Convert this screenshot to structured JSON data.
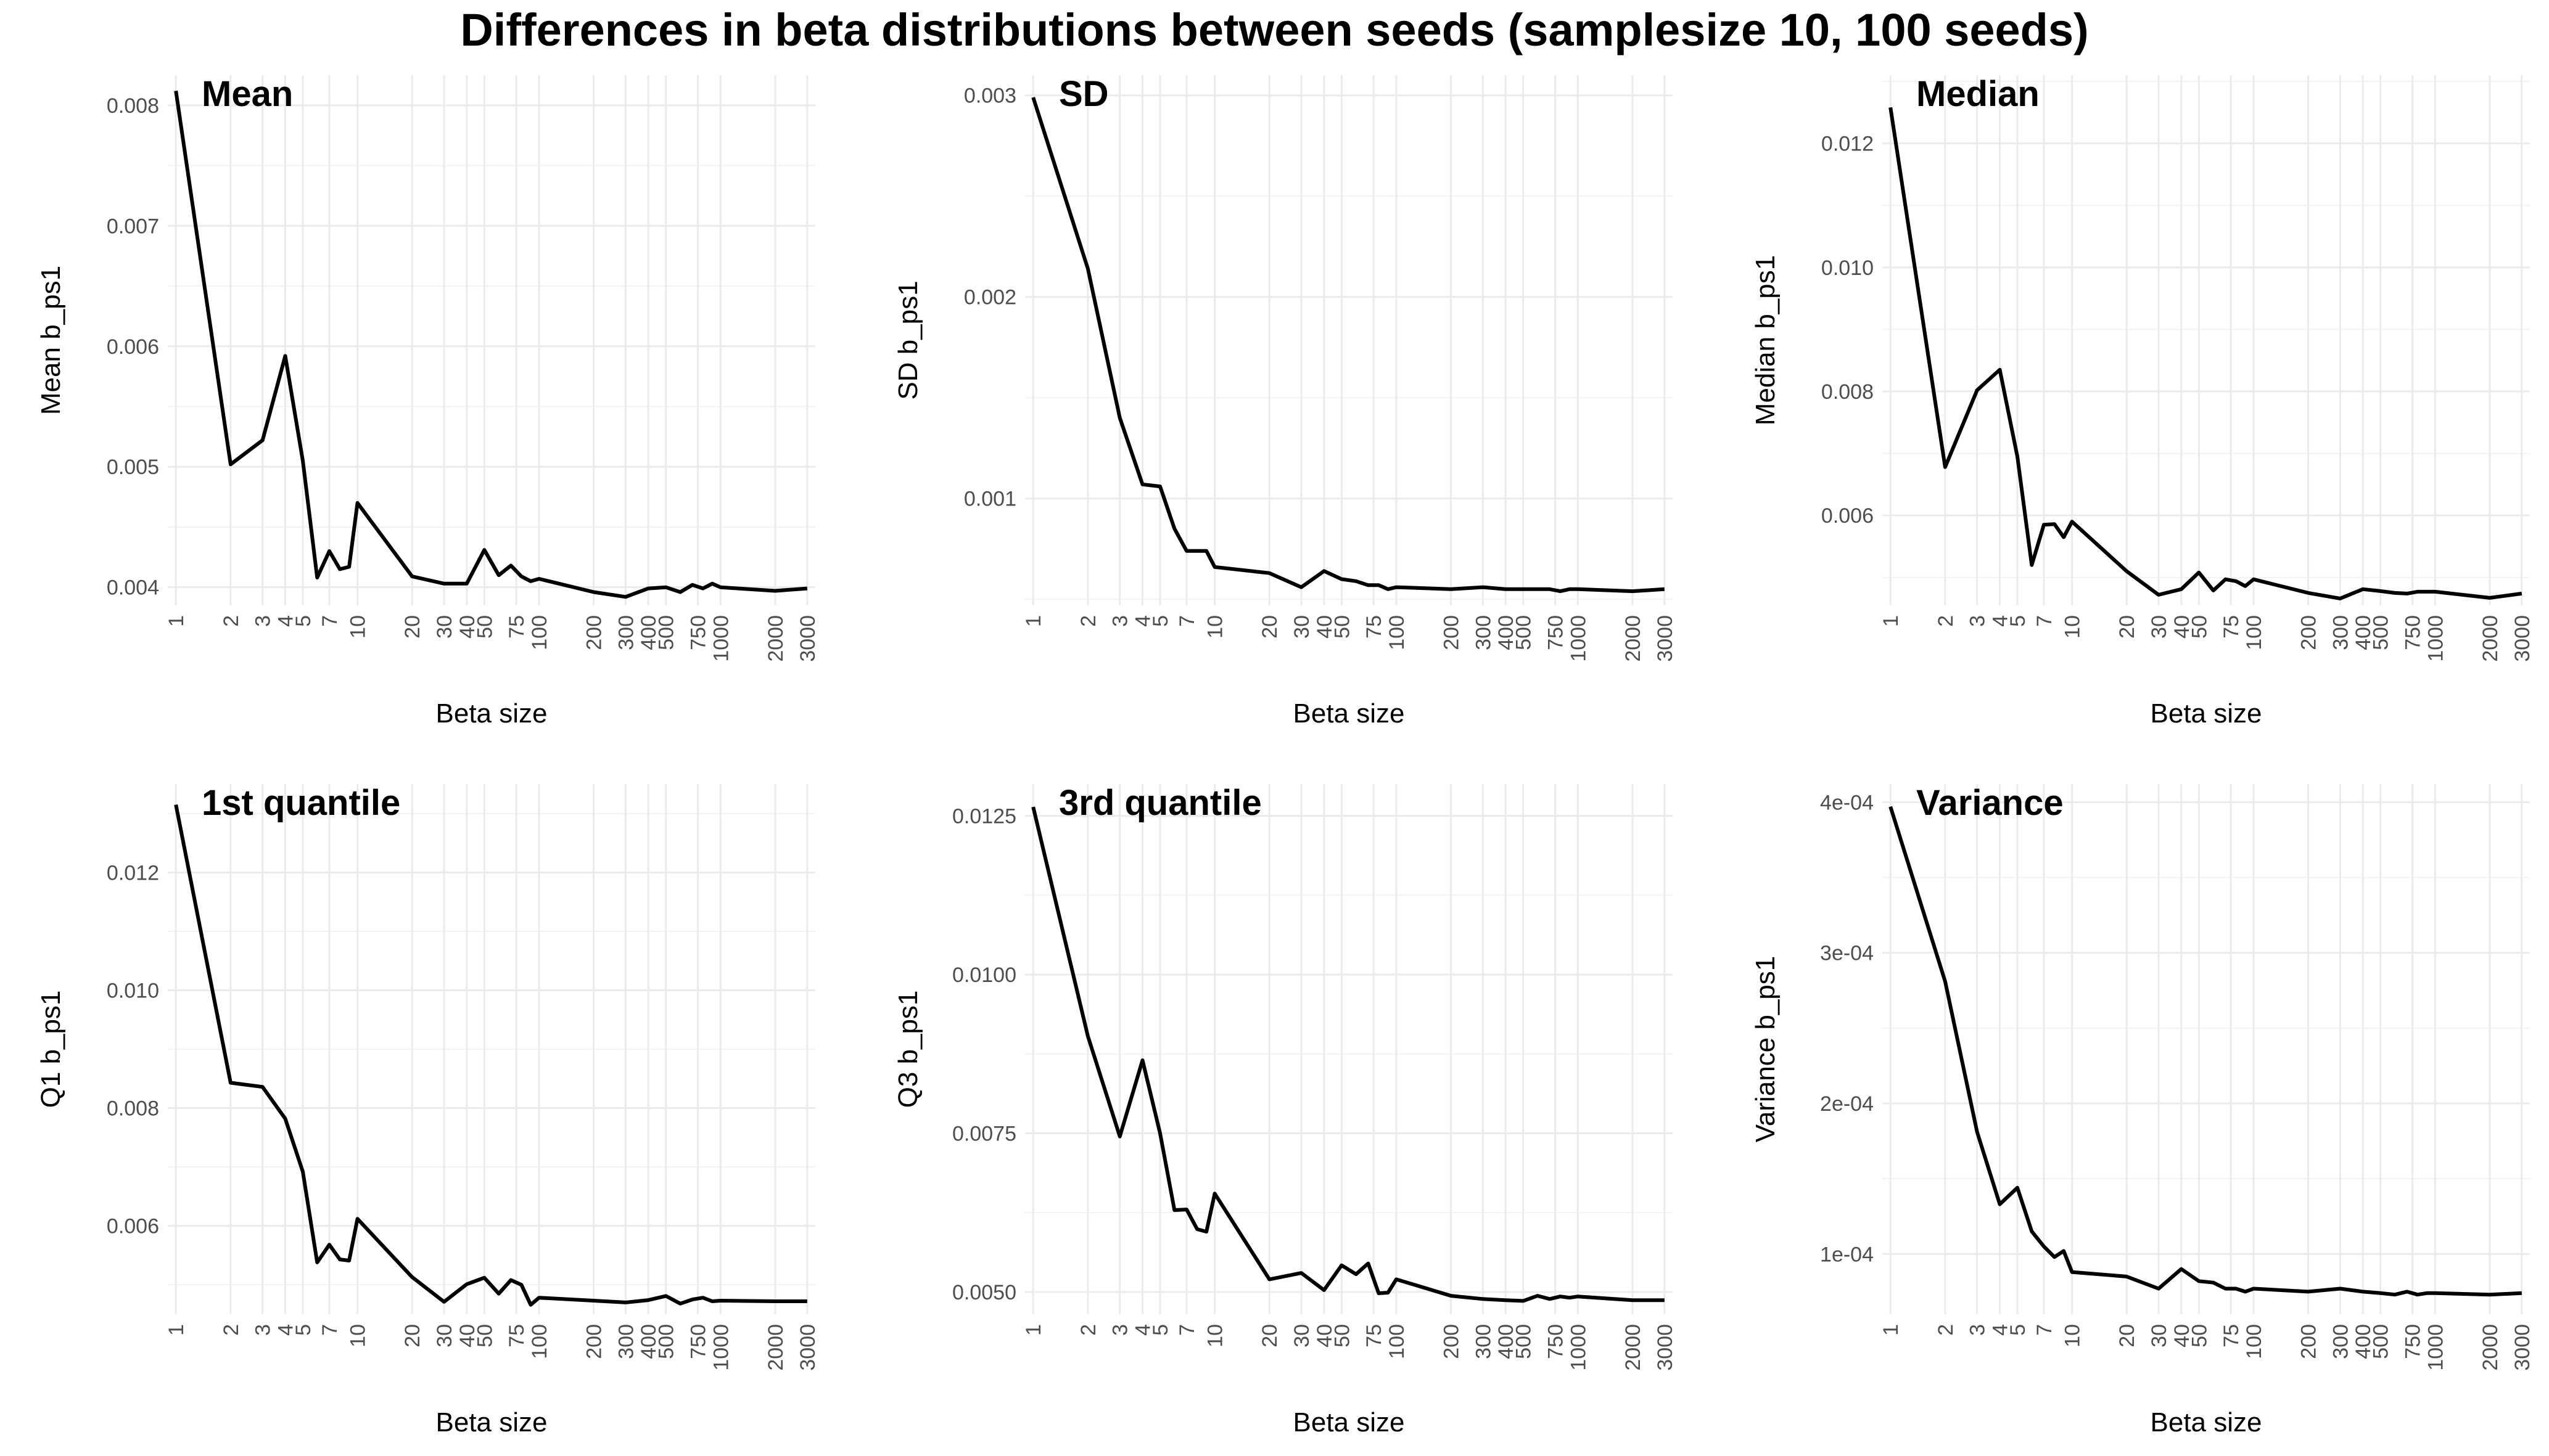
{
  "title": "Differences in beta distributions between seeds (samplesize 10, 100 seeds)",
  "chart_data": [
    {
      "type": "line",
      "title": "Mean",
      "xlabel": "Beta size",
      "ylabel": "Mean b_ps1",
      "x_scale": "log",
      "xticks": [
        1,
        2,
        3,
        4,
        5,
        7,
        10,
        20,
        30,
        40,
        50,
        75,
        100,
        200,
        300,
        400,
        500,
        750,
        1000,
        2000,
        3000
      ],
      "xlim": [
        1,
        3000
      ],
      "yticks": [
        "0.004",
        "0.005",
        "0.006",
        "0.007",
        "0.008"
      ],
      "ylim": [
        0.00385,
        0.00825
      ],
      "grid": true,
      "x": [
        1,
        2,
        3,
        4,
        5,
        6,
        7,
        8,
        9,
        10,
        20,
        30,
        40,
        50,
        60,
        70,
        80,
        90,
        100,
        200,
        300,
        400,
        500,
        600,
        700,
        800,
        900,
        1000,
        2000,
        3000
      ],
      "y": [
        0.00812,
        0.00502,
        0.00522,
        0.00592,
        0.00505,
        0.00408,
        0.0043,
        0.00415,
        0.00417,
        0.0047,
        0.00409,
        0.00403,
        0.00403,
        0.00431,
        0.0041,
        0.00418,
        0.00409,
        0.00405,
        0.00407,
        0.00396,
        0.00392,
        0.00399,
        0.004,
        0.00396,
        0.00402,
        0.00399,
        0.00403,
        0.004,
        0.00397,
        0.00399
      ]
    },
    {
      "type": "line",
      "title": "SD",
      "xlabel": "Beta size",
      "ylabel": "SD b_ps1",
      "x_scale": "log",
      "xticks": [
        1,
        2,
        3,
        4,
        5,
        7,
        10,
        20,
        30,
        40,
        50,
        75,
        100,
        200,
        300,
        400,
        500,
        750,
        1000,
        2000,
        3000
      ],
      "xlim": [
        1,
        3000
      ],
      "yticks": [
        "0.001",
        "0.002",
        "0.003"
      ],
      "ylim": [
        0.00047,
        0.0031
      ],
      "grid": true,
      "x": [
        1,
        2,
        3,
        4,
        5,
        6,
        7,
        8,
        9,
        10,
        20,
        30,
        40,
        50,
        60,
        70,
        80,
        90,
        100,
        200,
        300,
        400,
        500,
        600,
        700,
        800,
        900,
        1000,
        2000,
        3000
      ],
      "y": [
        0.00299,
        0.00214,
        0.0014,
        0.00107,
        0.00106,
        0.00085,
        0.00074,
        0.00074,
        0.00074,
        0.00066,
        0.00063,
        0.00056,
        0.00064,
        0.0006,
        0.00059,
        0.00057,
        0.00057,
        0.00055,
        0.00056,
        0.00055,
        0.00056,
        0.00055,
        0.00055,
        0.00055,
        0.00055,
        0.00054,
        0.00055,
        0.00055,
        0.00054,
        0.00055
      ]
    },
    {
      "type": "line",
      "title": "Median",
      "xlabel": "Beta size",
      "ylabel": "Median b_ps1",
      "x_scale": "log",
      "xticks": [
        1,
        2,
        3,
        4,
        5,
        7,
        10,
        20,
        30,
        40,
        50,
        75,
        100,
        200,
        300,
        400,
        500,
        750,
        1000,
        2000,
        3000
      ],
      "xlim": [
        1,
        3000
      ],
      "yticks": [
        "0.006",
        "0.008",
        "0.010",
        "0.012"
      ],
      "ylim": [
        0.00455,
        0.0131
      ],
      "grid": true,
      "x": [
        1,
        2,
        3,
        4,
        5,
        6,
        7,
        8,
        9,
        10,
        20,
        30,
        40,
        50,
        60,
        70,
        80,
        90,
        100,
        200,
        300,
        400,
        500,
        600,
        700,
        800,
        900,
        1000,
        2000,
        3000
      ],
      "y": [
        0.01258,
        0.00678,
        0.00802,
        0.00835,
        0.00695,
        0.0052,
        0.00585,
        0.00586,
        0.00565,
        0.0059,
        0.0051,
        0.00472,
        0.00481,
        0.00508,
        0.00479,
        0.00497,
        0.00494,
        0.00486,
        0.00497,
        0.00475,
        0.00466,
        0.00481,
        0.00478,
        0.00475,
        0.00474,
        0.00477,
        0.00477,
        0.00477,
        0.00467,
        0.00474
      ]
    },
    {
      "type": "line",
      "title": "1st quantile",
      "xlabel": "Beta size",
      "ylabel": "Q1 b_ps1",
      "x_scale": "log",
      "xticks": [
        1,
        2,
        3,
        4,
        5,
        7,
        10,
        20,
        30,
        40,
        50,
        75,
        100,
        200,
        300,
        400,
        500,
        750,
        1000,
        2000,
        3000
      ],
      "xlim": [
        1,
        3000
      ],
      "yticks": [
        "0.006",
        "0.008",
        "0.010",
        "0.012"
      ],
      "ylim": [
        0.0045,
        0.0135
      ],
      "grid": true,
      "x": [
        1,
        2,
        3,
        4,
        5,
        6,
        7,
        8,
        9,
        10,
        20,
        30,
        40,
        50,
        60,
        70,
        80,
        90,
        100,
        200,
        300,
        400,
        500,
        600,
        700,
        800,
        900,
        1000,
        2000,
        3000
      ],
      "y": [
        0.01315,
        0.00843,
        0.00836,
        0.00782,
        0.00692,
        0.00538,
        0.00568,
        0.00543,
        0.00541,
        0.00612,
        0.00513,
        0.00471,
        0.00501,
        0.00512,
        0.00485,
        0.00508,
        0.005,
        0.00466,
        0.00478,
        0.00473,
        0.0047,
        0.00474,
        0.00481,
        0.00468,
        0.00475,
        0.00478,
        0.00472,
        0.00473,
        0.00472,
        0.00472
      ]
    },
    {
      "type": "line",
      "title": "3rd quantile",
      "xlabel": "Beta size",
      "ylabel": "Q3 b_ps1",
      "x_scale": "log",
      "xticks": [
        1,
        2,
        3,
        4,
        5,
        7,
        10,
        20,
        30,
        40,
        50,
        75,
        100,
        200,
        300,
        400,
        500,
        750,
        1000,
        2000,
        3000
      ],
      "xlim": [
        1,
        3000
      ],
      "yticks": [
        "0.0050",
        "0.0075",
        "0.0100",
        "0.0125"
      ],
      "ylim": [
        0.00465,
        0.013
      ],
      "grid": true,
      "x": [
        1,
        2,
        3,
        4,
        5,
        6,
        7,
        8,
        9,
        10,
        20,
        30,
        40,
        50,
        60,
        70,
        80,
        90,
        100,
        200,
        300,
        400,
        500,
        600,
        700,
        800,
        900,
        1000,
        2000,
        3000
      ],
      "y": [
        0.01264,
        0.00903,
        0.00745,
        0.00865,
        0.0075,
        0.00629,
        0.0063,
        0.00599,
        0.00595,
        0.00655,
        0.0052,
        0.0053,
        0.00503,
        0.00542,
        0.00528,
        0.00545,
        0.00498,
        0.00499,
        0.0052,
        0.00494,
        0.00489,
        0.00487,
        0.00486,
        0.00494,
        0.00489,
        0.00493,
        0.00491,
        0.00493,
        0.00487,
        0.00487
      ]
    },
    {
      "type": "line",
      "title": "Variance",
      "xlabel": "Beta size",
      "ylabel": "Variance b_ps1",
      "x_scale": "log",
      "xticks": [
        1,
        2,
        3,
        4,
        5,
        7,
        10,
        20,
        30,
        40,
        50,
        75,
        100,
        200,
        300,
        400,
        500,
        750,
        1000,
        2000,
        3000
      ],
      "xlim": [
        1,
        3000
      ],
      "yticks": [
        "1e-04",
        "2e-04",
        "3e-04",
        "4e-04"
      ],
      "ylim": [
        6e-05,
        0.000412
      ],
      "grid": true,
      "x": [
        1,
        2,
        3,
        4,
        5,
        6,
        7,
        8,
        9,
        10,
        20,
        30,
        40,
        50,
        60,
        70,
        80,
        90,
        100,
        200,
        300,
        400,
        500,
        600,
        700,
        800,
        900,
        1000,
        2000,
        3000
      ],
      "y": [
        0.000397,
        0.000281,
        0.000181,
        0.000133,
        0.000144,
        0.000115,
        0.000105,
        9.8e-05,
        0.000102,
        8.8e-05,
        8.5e-05,
        7.7e-05,
        9e-05,
        8.2e-05,
        8.1e-05,
        7.7e-05,
        7.7e-05,
        7.5e-05,
        7.7e-05,
        7.5e-05,
        7.7e-05,
        7.5e-05,
        7.4e-05,
        7.3e-05,
        7.5e-05,
        7.3e-05,
        7.4e-05,
        7.4e-05,
        7.3e-05,
        7.4e-05
      ]
    }
  ]
}
